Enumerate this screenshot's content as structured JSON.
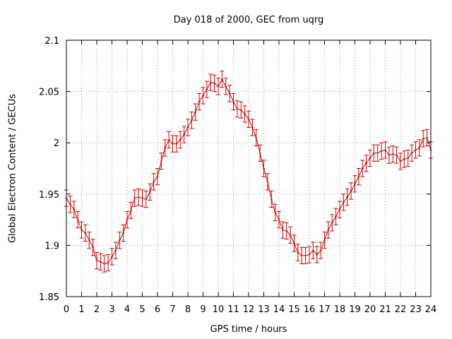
{
  "chart_data": {
    "type": "line",
    "title": "Day 018 of 2000, GEC from uqrg",
    "xlabel": "GPS time / hours",
    "ylabel": "Global Electron Content / GECUs",
    "xlim": [
      0,
      24
    ],
    "ylim": [
      1.85,
      2.1
    ],
    "grid": true,
    "x_ticks": [
      "0",
      "1",
      "2",
      "3",
      "4",
      "5",
      "6",
      "7",
      "8",
      "9",
      "10",
      "11",
      "12",
      "13",
      "14",
      "15",
      "16",
      "17",
      "18",
      "19",
      "20",
      "21",
      "22",
      "23",
      "24"
    ],
    "y_ticks": [
      {
        "value": 1.85,
        "label": "1.85"
      },
      {
        "value": 1.9,
        "label": "1.9"
      },
      {
        "value": 1.95,
        "label": "1.95"
      },
      {
        "value": 2.0,
        "label": "2"
      },
      {
        "value": 2.05,
        "label": "2.05"
      },
      {
        "value": 2.1,
        "label": "2.1"
      }
    ],
    "error": 0.008,
    "series_color": "#cc0000",
    "series": [
      {
        "name": "GEC",
        "x": [
          0,
          0.25,
          0.5,
          0.75,
          1,
          1.25,
          1.5,
          1.75,
          2,
          2.25,
          2.5,
          2.75,
          3,
          3.25,
          3.5,
          3.75,
          4,
          4.25,
          4.5,
          4.75,
          5,
          5.25,
          5.5,
          5.75,
          6,
          6.25,
          6.5,
          6.75,
          7,
          7.25,
          7.5,
          7.75,
          8,
          8.25,
          8.5,
          8.75,
          9,
          9.25,
          9.5,
          9.75,
          10,
          10.25,
          10.5,
          10.75,
          11,
          11.25,
          11.5,
          11.75,
          12,
          12.25,
          12.5,
          12.75,
          13,
          13.25,
          13.5,
          13.75,
          14,
          14.25,
          14.5,
          14.75,
          15,
          15.25,
          15.5,
          15.75,
          16,
          16.25,
          16.5,
          16.75,
          17,
          17.25,
          17.5,
          17.75,
          18,
          18.25,
          18.5,
          18.75,
          19,
          19.25,
          19.5,
          19.75,
          20,
          20.25,
          20.5,
          20.75,
          21,
          21.25,
          21.5,
          21.75,
          22,
          22.25,
          22.5,
          22.75,
          23,
          23.25,
          23.5,
          23.75,
          24
        ],
        "values": [
          1.946,
          1.94,
          1.935,
          1.925,
          1.915,
          1.912,
          1.905,
          1.898,
          1.885,
          1.884,
          1.882,
          1.883,
          1.889,
          1.895,
          1.905,
          1.912,
          1.925,
          1.934,
          1.946,
          1.947,
          1.946,
          1.945,
          1.952,
          1.962,
          1.967,
          1.982,
          1.995,
          2.003,
          1.999,
          1.999,
          2.003,
          2.008,
          2.015,
          2.022,
          2.03,
          2.04,
          2.046,
          2.052,
          2.059,
          2.058,
          2.055,
          2.062,
          2.055,
          2.048,
          2.04,
          2.033,
          2.032,
          2.028,
          2.023,
          2.015,
          2.005,
          1.99,
          1.975,
          1.962,
          1.945,
          1.932,
          1.925,
          1.915,
          1.914,
          1.91,
          1.902,
          1.893,
          1.89,
          1.89,
          1.891,
          1.895,
          1.891,
          1.895,
          1.905,
          1.915,
          1.922,
          1.928,
          1.935,
          1.942,
          1.947,
          1.953,
          1.96,
          1.967,
          1.975,
          1.98,
          1.985,
          1.99,
          1.99,
          1.992,
          1.993,
          1.988,
          1.989,
          1.988,
          1.982,
          1.984,
          1.985,
          1.99,
          1.993,
          1.995,
          2.004,
          2.005,
          1.993
        ]
      }
    ]
  }
}
